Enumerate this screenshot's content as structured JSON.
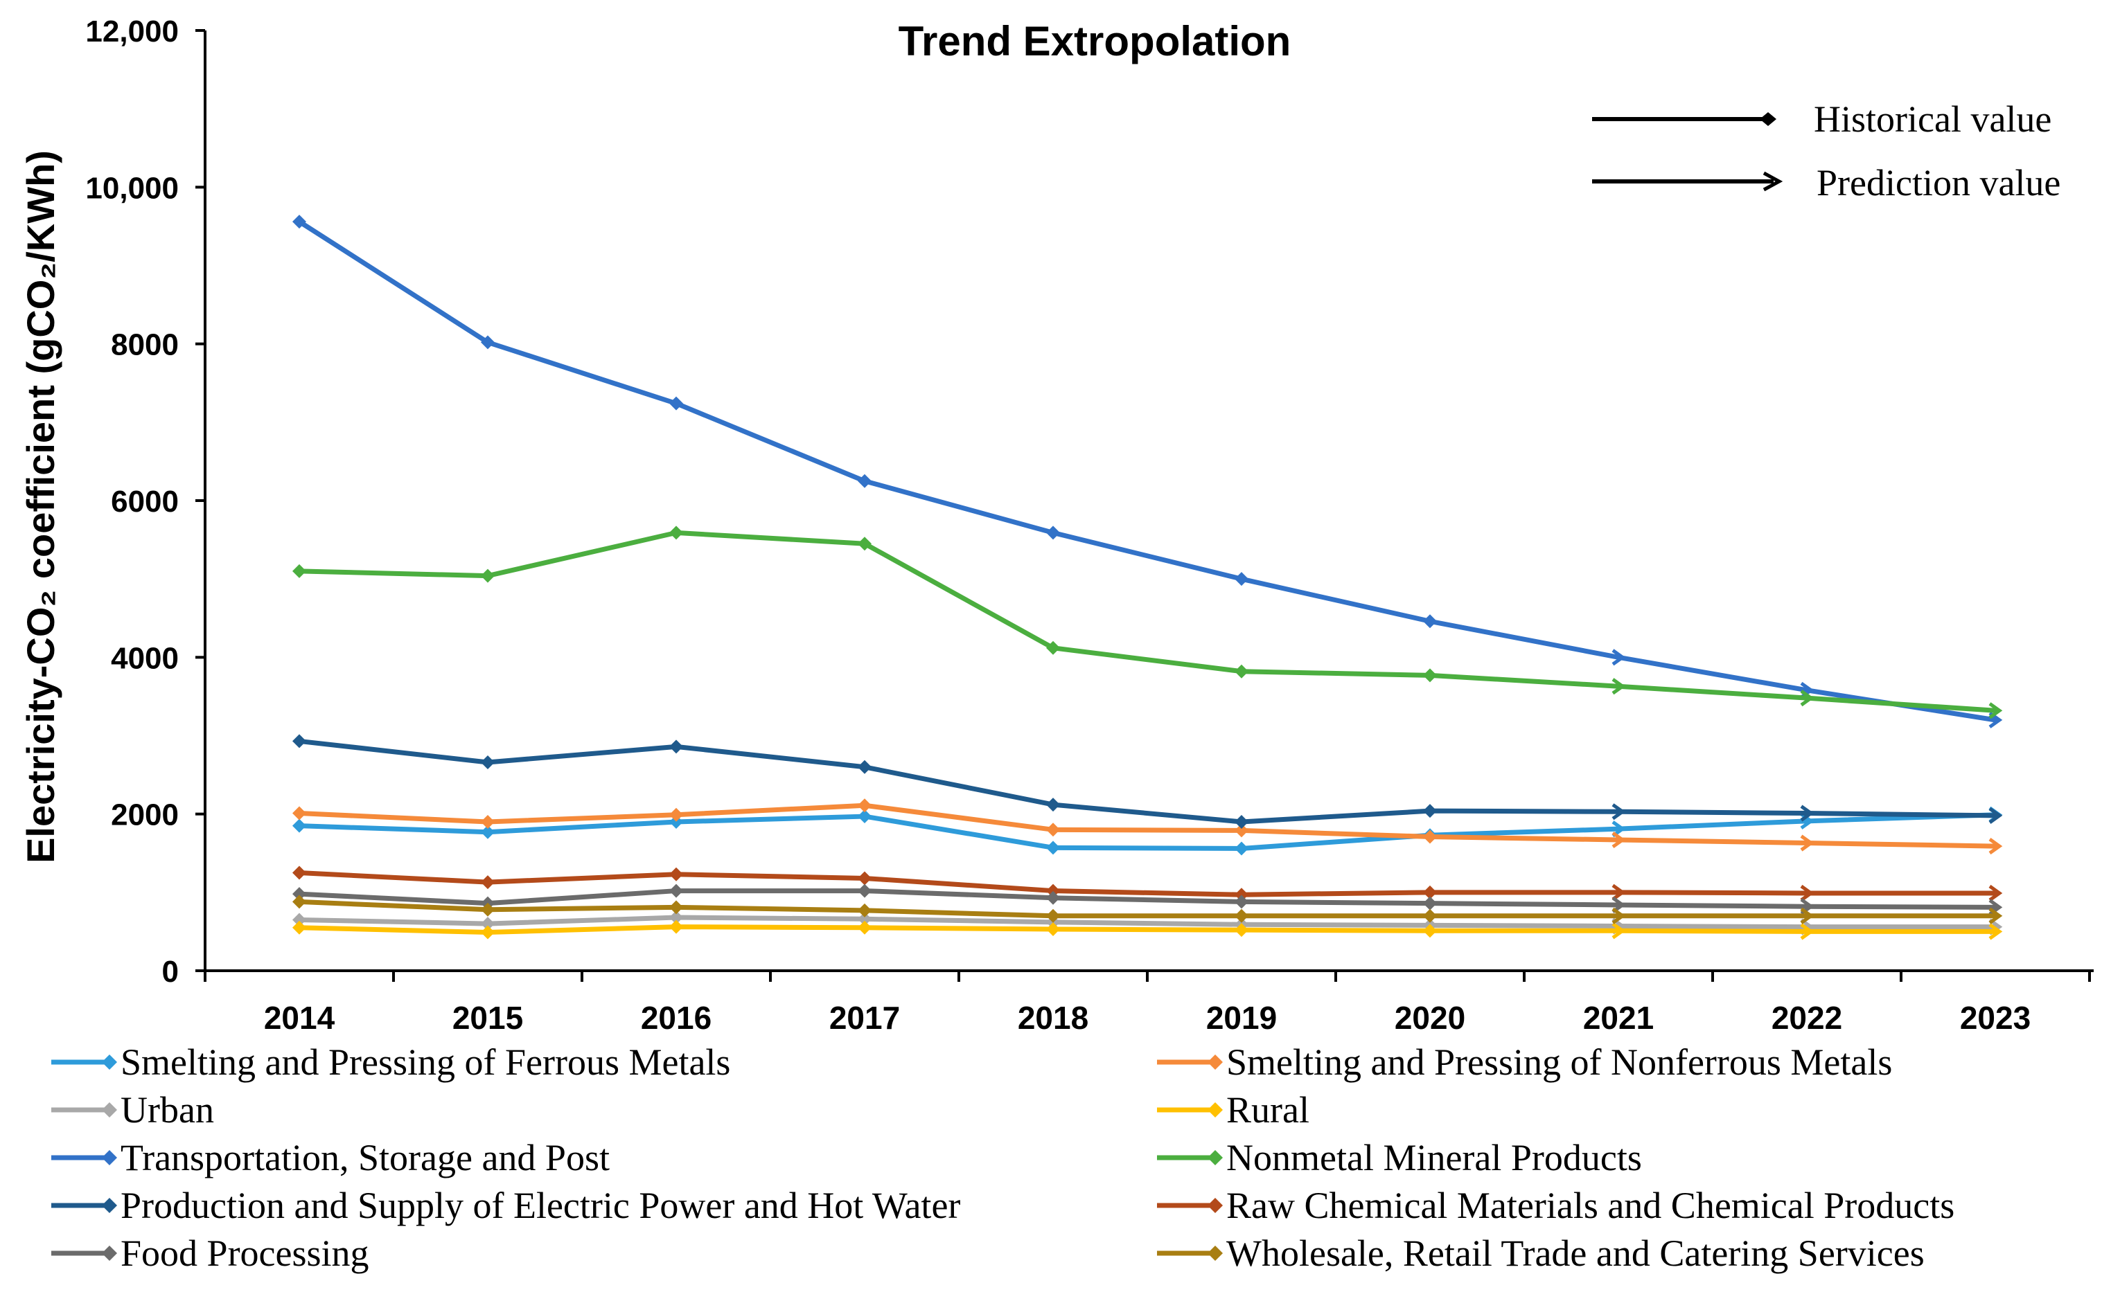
{
  "chart_data": {
    "type": "line",
    "title": "Trend Extropolation",
    "xlabel": "",
    "ylabel": "Electricity-CO₂ coefficient (gCO₂/KWh)",
    "x": [
      "2014",
      "2015",
      "2016",
      "2017",
      "2018",
      "2019",
      "2020",
      "2021",
      "2022",
      "2023"
    ],
    "ylim": [
      0,
      12000
    ],
    "yticks": [
      {
        "value": 0,
        "label": "0"
      },
      {
        "value": 2000,
        "label": "2000"
      },
      {
        "value": 4000,
        "label": "4000"
      },
      {
        "value": 6000,
        "label": "6000"
      },
      {
        "value": 8000,
        "label": "8000"
      },
      {
        "value": 10000,
        "label": "10,000"
      },
      {
        "value": 12000,
        "label": "12,000"
      }
    ],
    "grid": false,
    "historical_count": 7,
    "key": {
      "historical": "Historical value",
      "prediction": "Prediction value"
    },
    "series": [
      {
        "name": "Smelting and Pressing of Ferrous Metals",
        "color": "#2E9BDA",
        "values": [
          1850,
          1770,
          1900,
          1970,
          1570,
          1560,
          1730,
          1810,
          1910,
          1990
        ]
      },
      {
        "name": "Smelting and Pressing of Nonferrous Metals",
        "color": "#F58A3A",
        "values": [
          2010,
          1900,
          1990,
          2110,
          1800,
          1790,
          1710,
          1670,
          1630,
          1590
        ]
      },
      {
        "name": "Urban",
        "color": "#A8A8A8",
        "values": [
          650,
          600,
          680,
          660,
          620,
          590,
          580,
          570,
          560,
          560
        ]
      },
      {
        "name": "Rural",
        "color": "#FFC000",
        "values": [
          550,
          490,
          560,
          550,
          530,
          520,
          510,
          510,
          500,
          500
        ]
      },
      {
        "name": "Transportation, Storage and Post",
        "color": "#3272C8",
        "values": [
          9560,
          8020,
          7240,
          6250,
          5590,
          5000,
          4460,
          4000,
          3580,
          3200
        ]
      },
      {
        "name": "Nonmetal Mineral Products",
        "color": "#4BAE3F",
        "values": [
          5100,
          5040,
          5590,
          5450,
          4120,
          3820,
          3770,
          3630,
          3480,
          3320
        ]
      },
      {
        "name": "Production and Supply of Electric Power and Hot Water",
        "color": "#1F5A8C",
        "values": [
          2930,
          2660,
          2860,
          2600,
          2120,
          1900,
          2040,
          2030,
          2010,
          1980
        ]
      },
      {
        "name": "Raw Chemical Materials and Chemical Products",
        "color": "#B34A1A",
        "values": [
          1250,
          1130,
          1230,
          1180,
          1020,
          970,
          1000,
          1000,
          990,
          990
        ]
      },
      {
        "name": "Food Processing",
        "color": "#6B6B6B",
        "values": [
          980,
          860,
          1020,
          1020,
          930,
          880,
          860,
          840,
          820,
          810
        ]
      },
      {
        "name": "Wholesale, Retail Trade and Catering Services",
        "color": "#A87E12",
        "values": [
          880,
          780,
          810,
          770,
          700,
          700,
          700,
          700,
          700,
          700
        ]
      }
    ]
  }
}
